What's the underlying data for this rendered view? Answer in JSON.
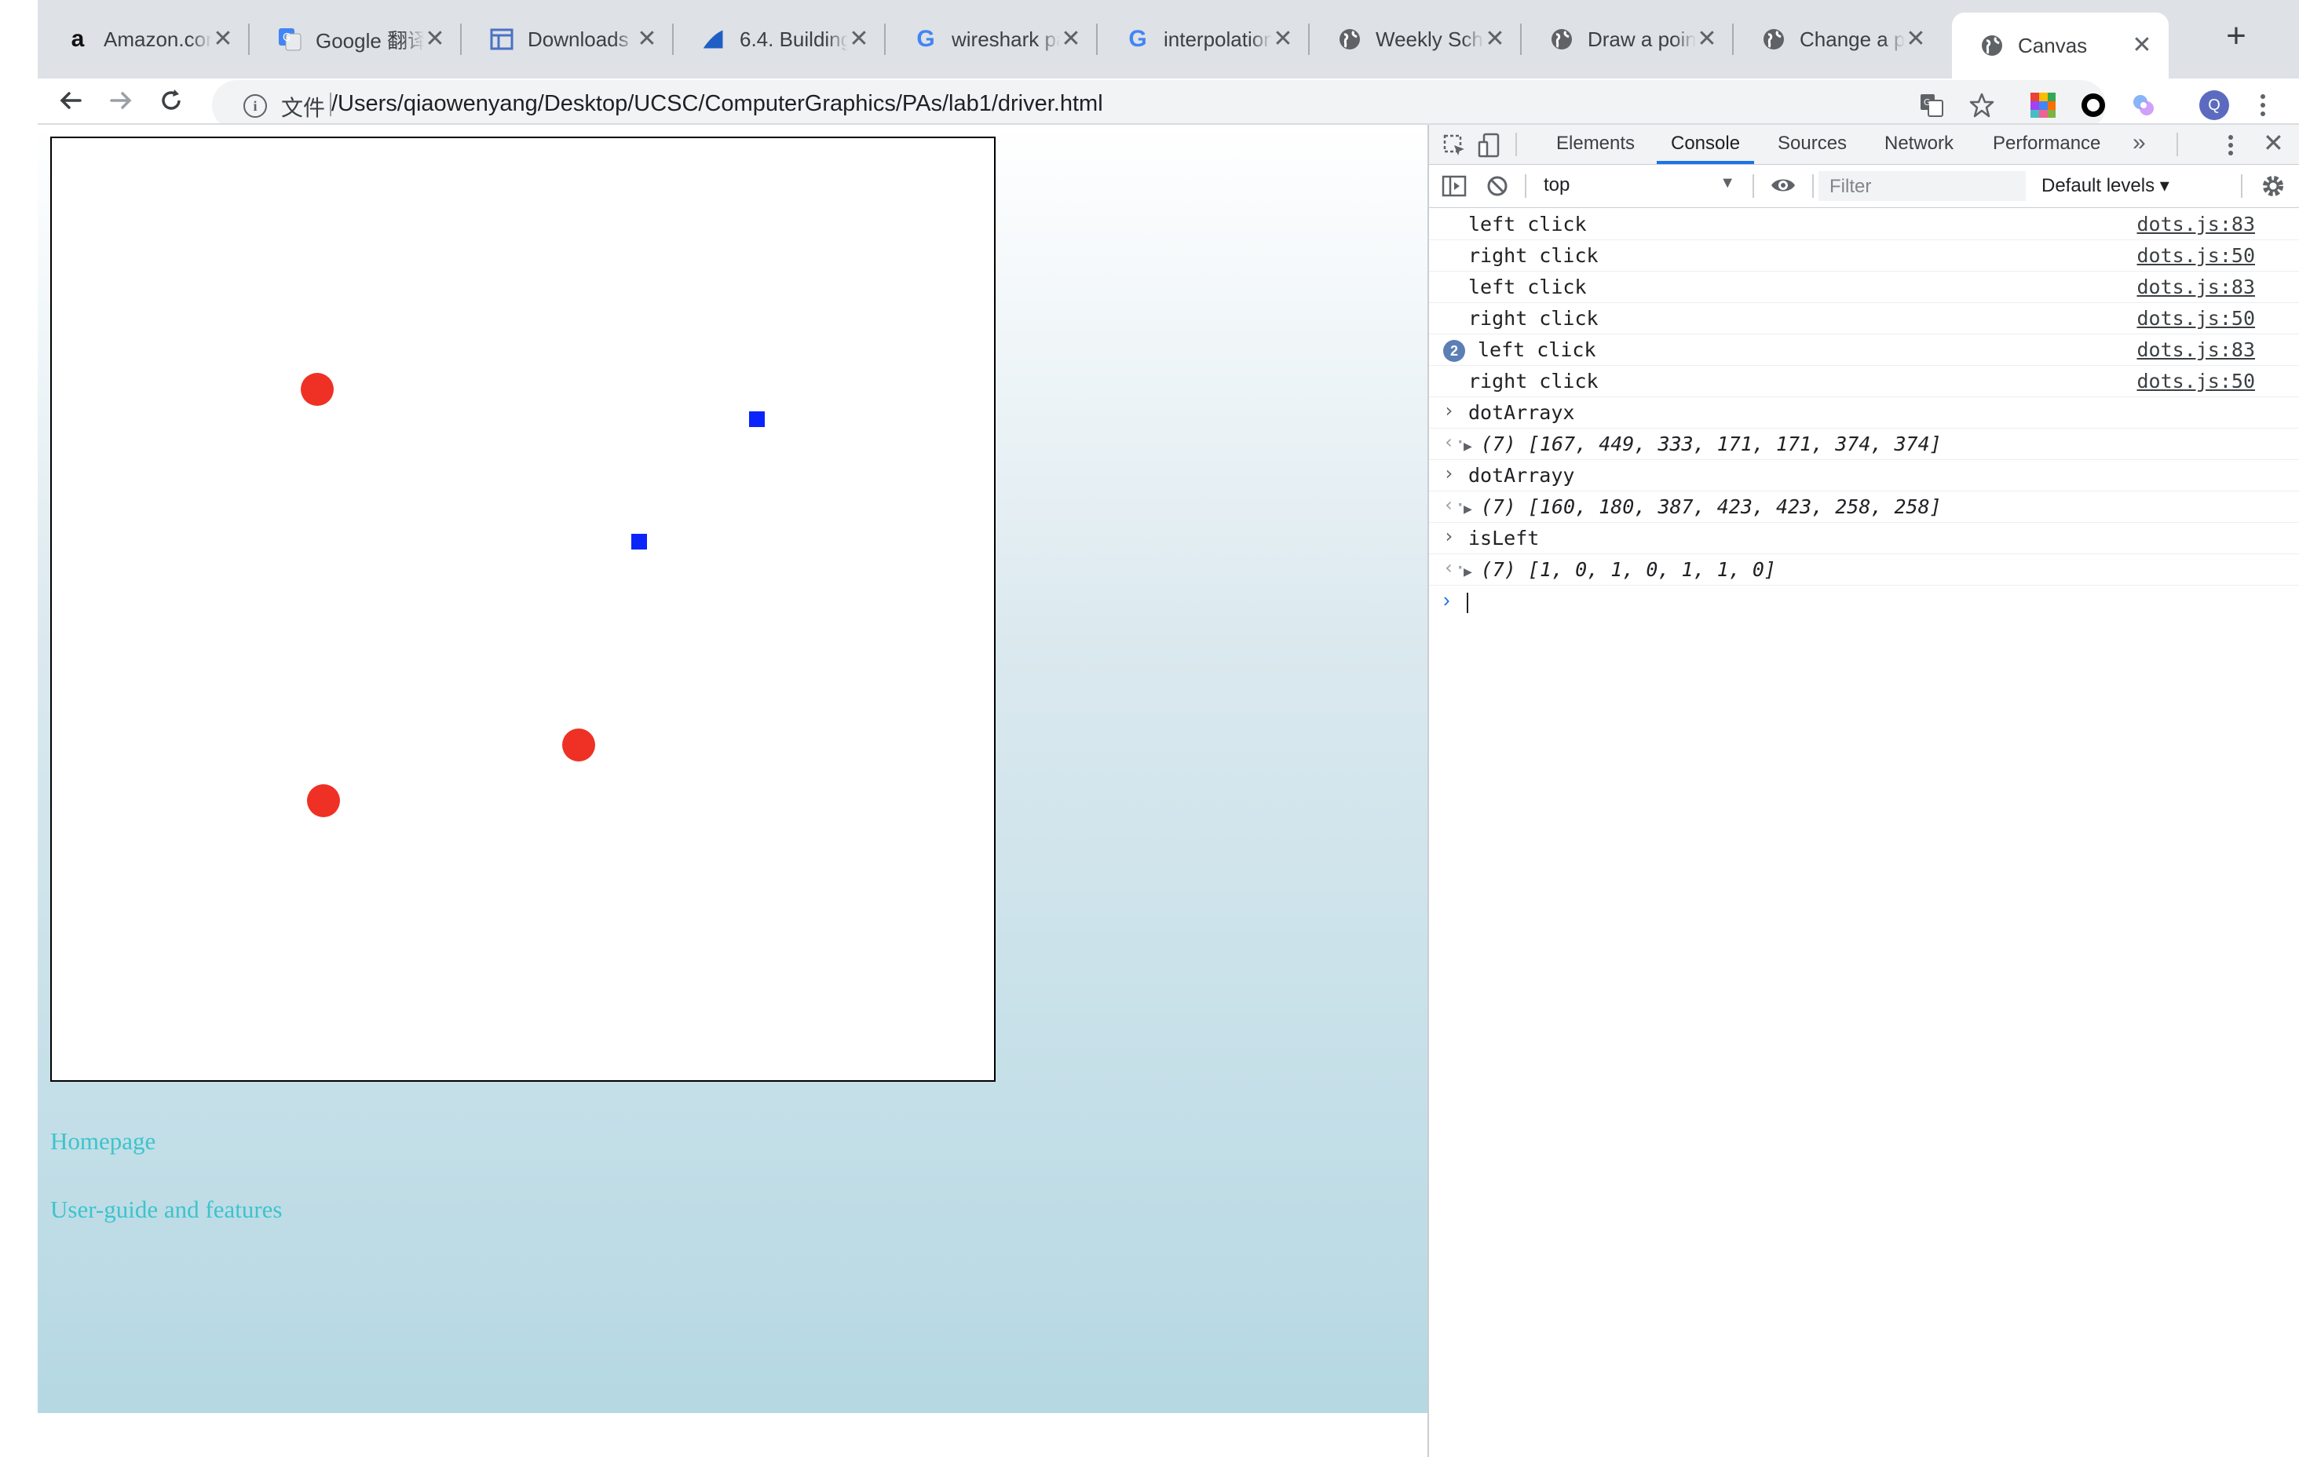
{
  "tabs": [
    {
      "title": "Amazon.com",
      "icon": "amazon-icon"
    },
    {
      "title": "Google 翻译",
      "icon": "translate-icon"
    },
    {
      "title": "Downloads -",
      "icon": "layout-icon"
    },
    {
      "title": "6.4. Building",
      "icon": "wireshark-fin-icon"
    },
    {
      "title": "wireshark pa",
      "icon": "google-icon"
    },
    {
      "title": "interpolation",
      "icon": "google-icon"
    },
    {
      "title": "Weekly Sche",
      "icon": "globe-icon"
    },
    {
      "title": "Draw a point",
      "icon": "globe-icon"
    },
    {
      "title": "Change a po",
      "icon": "globe-icon"
    },
    {
      "title": "Canvas",
      "icon": "globe-icon",
      "active": true
    }
  ],
  "toolbar": {
    "scheme_label": "文件",
    "url": "/Users/qiaowenyang/Desktop/UCSC/ComputerGraphics/PAs/lab1/driver.html",
    "profile_initial": "Q"
  },
  "page": {
    "links": [
      "Homepage",
      "User-guide and features"
    ],
    "red_dot_color": "#ee3124",
    "blue_square_color": "#0b24fb"
  },
  "devtools": {
    "tabs": [
      "Elements",
      "Console",
      "Sources",
      "Network",
      "Performance"
    ],
    "active_tab": "Console",
    "context": "top",
    "filter_placeholder": "Filter",
    "levels": "Default levels ▾",
    "logs": [
      {
        "msg": "left click",
        "src": "dots.js:83"
      },
      {
        "msg": "right click",
        "src": "dots.js:50"
      },
      {
        "msg": "left click",
        "src": "dots.js:83"
      },
      {
        "msg": "right click",
        "src": "dots.js:50"
      },
      {
        "msg": "left click",
        "src": "dots.js:83",
        "count": "2"
      },
      {
        "msg": "right click",
        "src": "dots.js:50"
      }
    ],
    "evals": [
      {
        "input": "dotArrayx",
        "output": "(7) [167, 449, 333, 171, 171, 374, 374]"
      },
      {
        "input": "dotArrayy",
        "output": "(7) [160, 180, 387, 423, 423, 258, 258]"
      },
      {
        "input": "isLeft",
        "output": "(7) [1, 0, 1, 0, 1, 1, 0]"
      }
    ]
  }
}
